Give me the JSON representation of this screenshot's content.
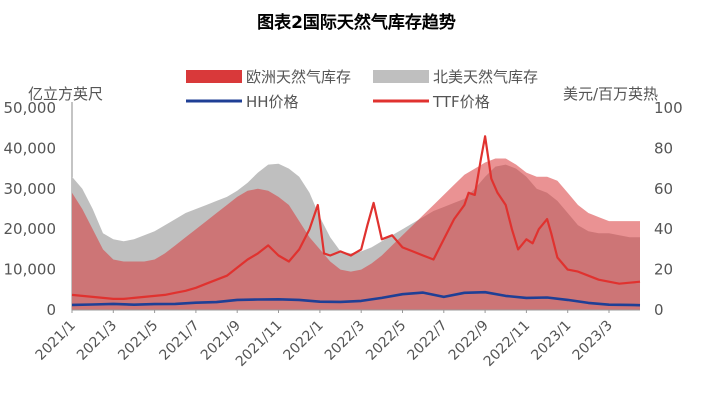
{
  "chart_data": {
    "type": "area+line",
    "title": "图表2国际天然气库存趋势",
    "left_axis": {
      "label": "亿立方英尺",
      "min": 0,
      "max": 50000,
      "ticks": [
        "0",
        "10,000",
        "20,000",
        "30,000",
        "40,000",
        "50,000"
      ],
      "tick_values": [
        0,
        10000,
        20000,
        30000,
        40000,
        50000
      ]
    },
    "right_axis": {
      "label": "美元/百万英热",
      "min": 0,
      "max": 100,
      "ticks": [
        "0",
        "20",
        "40",
        "60",
        "80",
        "100"
      ],
      "tick_values": [
        0,
        20,
        40,
        60,
        80,
        100
      ]
    },
    "x_ticks": [
      "2021/1",
      "2021/3",
      "2021/5",
      "2021/7",
      "2021/9",
      "2021/11",
      "2022/1",
      "2022/3",
      "2022/5",
      "2022/7",
      "2022/9",
      "2022/11",
      "2023/1",
      "2023/3"
    ],
    "x_range_months": [
      0,
      27.5
    ],
    "legend": [
      {
        "name": "欧洲天然气库存",
        "kind": "area",
        "color": "#d9393a"
      },
      {
        "name": "北美天然气库存",
        "kind": "area",
        "color": "#bfbfbf"
      },
      {
        "name": "HH价格",
        "kind": "line",
        "color": "#1f3f95"
      },
      {
        "name": "TTF价格",
        "kind": "line",
        "color": "#e0322f"
      }
    ],
    "series": [
      {
        "name": "北美天然气库存",
        "axis": "left",
        "x": [
          0,
          0.5,
          1,
          1.5,
          2,
          2.5,
          3,
          3.5,
          4,
          4.5,
          5,
          5.5,
          6,
          6.5,
          7,
          7.5,
          8,
          8.5,
          9,
          9.5,
          10,
          10.5,
          11,
          11.5,
          12,
          12.5,
          13,
          13.5,
          14,
          14.5,
          15,
          15.5,
          16,
          16.5,
          17,
          17.5,
          18,
          18.5,
          19,
          19.5,
          20,
          20.5,
          21,
          21.5,
          22,
          22.5,
          23,
          23.5,
          24,
          24.5,
          25,
          25.5,
          26,
          26.5,
          27,
          27.5
        ],
        "values": [
          33000,
          30000,
          25000,
          19000,
          17500,
          17000,
          17500,
          18500,
          19500,
          21000,
          22500,
          24000,
          25000,
          26000,
          27000,
          28000,
          29500,
          31500,
          34000,
          36000,
          36200,
          35000,
          33000,
          29000,
          23000,
          18000,
          14500,
          14000,
          14500,
          15500,
          17000,
          18500,
          20000,
          21500,
          23000,
          24500,
          25500,
          26500,
          27500,
          30000,
          33000,
          35500,
          36000,
          35000,
          33000,
          30000,
          29000,
          27000,
          24000,
          21000,
          19500,
          19000,
          19000,
          18500,
          18000,
          18000
        ]
      },
      {
        "name": "欧洲天然气库存",
        "axis": "left",
        "x": [
          0,
          0.5,
          1,
          1.5,
          2,
          2.5,
          3,
          3.5,
          4,
          4.5,
          5,
          5.5,
          6,
          6.5,
          7,
          7.5,
          8,
          8.5,
          9,
          9.5,
          10,
          10.5,
          11,
          11.5,
          12,
          12.5,
          13,
          13.5,
          14,
          14.5,
          15,
          15.5,
          16,
          16.5,
          17,
          17.5,
          18,
          18.5,
          19,
          19.5,
          20,
          20.5,
          21,
          21.5,
          22,
          22.5,
          23,
          23.5,
          24,
          24.5,
          25,
          25.5,
          26,
          26.5,
          27,
          27.5
        ],
        "values": [
          29000,
          25000,
          20000,
          15000,
          12500,
          12000,
          12000,
          12000,
          12500,
          14000,
          16000,
          18000,
          20000,
          22000,
          24000,
          26000,
          28000,
          29500,
          30000,
          29500,
          28000,
          26000,
          22000,
          18000,
          15000,
          12000,
          10000,
          9500,
          10000,
          11500,
          13500,
          16000,
          18500,
          21000,
          23500,
          26000,
          28500,
          31000,
          33500,
          35000,
          36500,
          37500,
          37500,
          36000,
          34000,
          33000,
          33000,
          32000,
          29000,
          26000,
          24000,
          23000,
          22000,
          22000,
          22000,
          22000
        ]
      },
      {
        "name": "HH价格",
        "axis": "right",
        "x": [
          0,
          1,
          2,
          3,
          4,
          5,
          6,
          7,
          8,
          9,
          10,
          11,
          12,
          13,
          14,
          15,
          16,
          17,
          18,
          19,
          20,
          21,
          22,
          23,
          24,
          25,
          26,
          27,
          27.5
        ],
        "values": [
          2.5,
          2.7,
          3.0,
          2.6,
          2.9,
          3.0,
          3.6,
          3.9,
          5.0,
          5.2,
          5.3,
          5.0,
          4.1,
          4.0,
          4.5,
          6.0,
          7.8,
          8.6,
          6.5,
          8.5,
          8.8,
          7.0,
          6.0,
          6.2,
          5.0,
          3.5,
          2.6,
          2.5,
          2.4
        ]
      },
      {
        "name": "TTF价格",
        "axis": "right",
        "x": [
          0,
          0.5,
          1,
          1.5,
          2,
          2.5,
          3,
          3.5,
          4,
          4.5,
          5,
          5.5,
          6,
          6.5,
          7,
          7.5,
          8,
          8.5,
          9,
          9.5,
          10,
          10.5,
          11,
          11.5,
          11.9,
          12.2,
          12.5,
          13,
          13.5,
          14,
          14.3,
          14.6,
          15,
          15.5,
          16,
          16.5,
          17,
          17.5,
          18,
          18.5,
          19,
          19.2,
          19.5,
          19.8,
          20,
          20.3,
          20.6,
          21,
          21.3,
          21.6,
          22,
          22.3,
          22.6,
          23,
          23.2,
          23.5,
          24,
          24.5,
          25,
          25.5,
          26,
          26.5,
          27,
          27.5
        ],
        "values": [
          7.5,
          7,
          6.5,
          6,
          5.5,
          5.5,
          6,
          6.5,
          7,
          7.5,
          8.5,
          9.5,
          11,
          13,
          15,
          17,
          21,
          25,
          28,
          32,
          27,
          24,
          30,
          40,
          52,
          28,
          27,
          29,
          27,
          30,
          42,
          53,
          35,
          37,
          31,
          29,
          27,
          25,
          35,
          45,
          52,
          58,
          57,
          75,
          86,
          65,
          58,
          52,
          40,
          30,
          35,
          33,
          40,
          45,
          38,
          26,
          20,
          19,
          17,
          15,
          14,
          13,
          13.5,
          14
        ]
      }
    ]
  }
}
